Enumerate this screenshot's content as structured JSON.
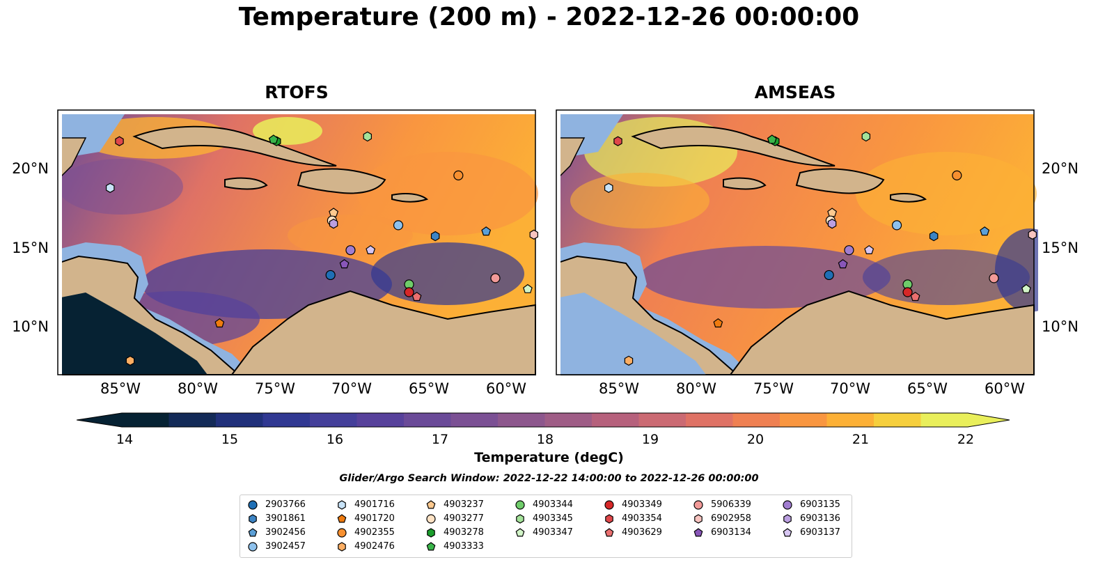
{
  "title": "Temperature (200 m) - 2022-12-26 00:00:00",
  "panels": [
    {
      "name": "RTOFS",
      "lat_ticks": [
        "20°N",
        "15°N",
        "10°N"
      ],
      "lon_ticks": [
        "85°W",
        "80°W",
        "75°W",
        "70°W",
        "65°W",
        "60°W"
      ],
      "lat_tick_side": "left"
    },
    {
      "name": "AMSEAS",
      "lat_ticks": [
        "20°N",
        "15°N",
        "10°N"
      ],
      "lon_ticks": [
        "85°W",
        "80°W",
        "75°W",
        "70°W",
        "65°W",
        "60°W"
      ],
      "lat_tick_side": "right"
    }
  ],
  "map_extent": {
    "lon_min": -89,
    "lon_max": -58,
    "lat_min": 7,
    "lat_max": 24
  },
  "colorbar": {
    "label": "Temperature (degC)",
    "min": 14,
    "max": 22,
    "step": 0.5,
    "ticks": [
      "14",
      "15",
      "16",
      "17",
      "18",
      "19",
      "20",
      "21",
      "22"
    ],
    "extend": "both",
    "colors": [
      "#062233",
      "#132a57",
      "#20307a",
      "#303892",
      "#443f9a",
      "#57419b",
      "#6a4a98",
      "#7b5094",
      "#8d578d",
      "#9f5d86",
      "#b6617c",
      "#cb6a73",
      "#df7265",
      "#ef8052",
      "#f99640",
      "#fcb036",
      "#f6cf3d",
      "#e9ef5b"
    ]
  },
  "search_window": "Glider/Argo Search Window: 2022-12-22 14:00:00 to 2022-12-26 00:00:00",
  "legend": [
    {
      "id": "2903766",
      "marker": "circle",
      "color": "#1f6fb5"
    },
    {
      "id": "3901861",
      "marker": "hexagon",
      "color": "#3d84c4"
    },
    {
      "id": "3902456",
      "marker": "pentagon",
      "color": "#5b9fd6"
    },
    {
      "id": "3902457",
      "marker": "circle",
      "color": "#8ec1ec"
    },
    {
      "id": "4901716",
      "marker": "hexagon",
      "color": "#c8e3f8"
    },
    {
      "id": "4901720",
      "marker": "pentagon",
      "color": "#ef7b0f"
    },
    {
      "id": "4902355",
      "marker": "circle",
      "color": "#f79030"
    },
    {
      "id": "4902476",
      "marker": "hexagon",
      "color": "#fcae63"
    },
    {
      "id": "4903237",
      "marker": "pentagon",
      "color": "#fdc98f"
    },
    {
      "id": "4903277",
      "marker": "circle",
      "color": "#fee2c4"
    },
    {
      "id": "4903278",
      "marker": "hexagon",
      "color": "#1b9e2c"
    },
    {
      "id": "4903333",
      "marker": "pentagon",
      "color": "#3ab54a"
    },
    {
      "id": "4903344",
      "marker": "circle",
      "color": "#6fcc6a"
    },
    {
      "id": "4903345",
      "marker": "hexagon",
      "color": "#a4e29a"
    },
    {
      "id": "4903347",
      "marker": "pentagon",
      "color": "#d2f4c8"
    },
    {
      "id": "4903349",
      "marker": "circle",
      "color": "#d62728"
    },
    {
      "id": "4903354",
      "marker": "hexagon",
      "color": "#e0474a"
    },
    {
      "id": "4903629",
      "marker": "pentagon",
      "color": "#ea6f6f"
    },
    {
      "id": "5906339",
      "marker": "circle",
      "color": "#f29a98"
    },
    {
      "id": "6902958",
      "marker": "hexagon",
      "color": "#f8c4c0"
    },
    {
      "id": "6903134",
      "marker": "pentagon",
      "color": "#8856b8"
    },
    {
      "id": "6903135",
      "marker": "circle",
      "color": "#a17dd0"
    },
    {
      "id": "6903136",
      "marker": "hexagon",
      "color": "#bb9fe0"
    },
    {
      "id": "6903137",
      "marker": "pentagon",
      "color": "#d7c6f2"
    }
  ],
  "platform_locations": [
    {
      "id": "2903766",
      "lon": -71.3,
      "lat": 13.4
    },
    {
      "id": "3901861",
      "lon": -64.5,
      "lat": 15.9
    },
    {
      "id": "3902456",
      "lon": -61.2,
      "lat": 16.2
    },
    {
      "id": "3902457",
      "lon": -66.9,
      "lat": 16.6
    },
    {
      "id": "4901716",
      "lon": -85.6,
      "lat": 19.0
    },
    {
      "id": "4901720",
      "lon": -78.5,
      "lat": 10.3
    },
    {
      "id": "4902355",
      "lon": -63.0,
      "lat": 19.8
    },
    {
      "id": "4902476",
      "lon": -84.3,
      "lat": 7.9
    },
    {
      "id": "4903237",
      "lon": -71.1,
      "lat": 17.4
    },
    {
      "id": "4903277",
      "lon": -71.2,
      "lat": 16.9
    },
    {
      "id": "4903278",
      "lon": -74.8,
      "lat": 22.0
    },
    {
      "id": "4903333",
      "lon": -75.0,
      "lat": 22.1
    },
    {
      "id": "4903344",
      "lon": -66.2,
      "lat": 12.8
    },
    {
      "id": "4903345",
      "lon": -68.9,
      "lat": 22.3
    },
    {
      "id": "4903347",
      "lon": -58.5,
      "lat": 12.5
    },
    {
      "id": "4903349",
      "lon": -66.2,
      "lat": 12.3
    },
    {
      "id": "4903354",
      "lon": -85.0,
      "lat": 22.0
    },
    {
      "id": "4903629",
      "lon": -65.7,
      "lat": 12.0
    },
    {
      "id": "5906339",
      "lon": -60.6,
      "lat": 13.2
    },
    {
      "id": "6902958",
      "lon": -58.1,
      "lat": 16.0
    },
    {
      "id": "6903134",
      "lon": -70.4,
      "lat": 14.1
    },
    {
      "id": "6903135",
      "lon": -70.0,
      "lat": 15.0
    },
    {
      "id": "6903136",
      "lon": -71.1,
      "lat": 16.7
    },
    {
      "id": "6903137",
      "lon": -68.7,
      "lat": 15.0
    }
  ]
}
